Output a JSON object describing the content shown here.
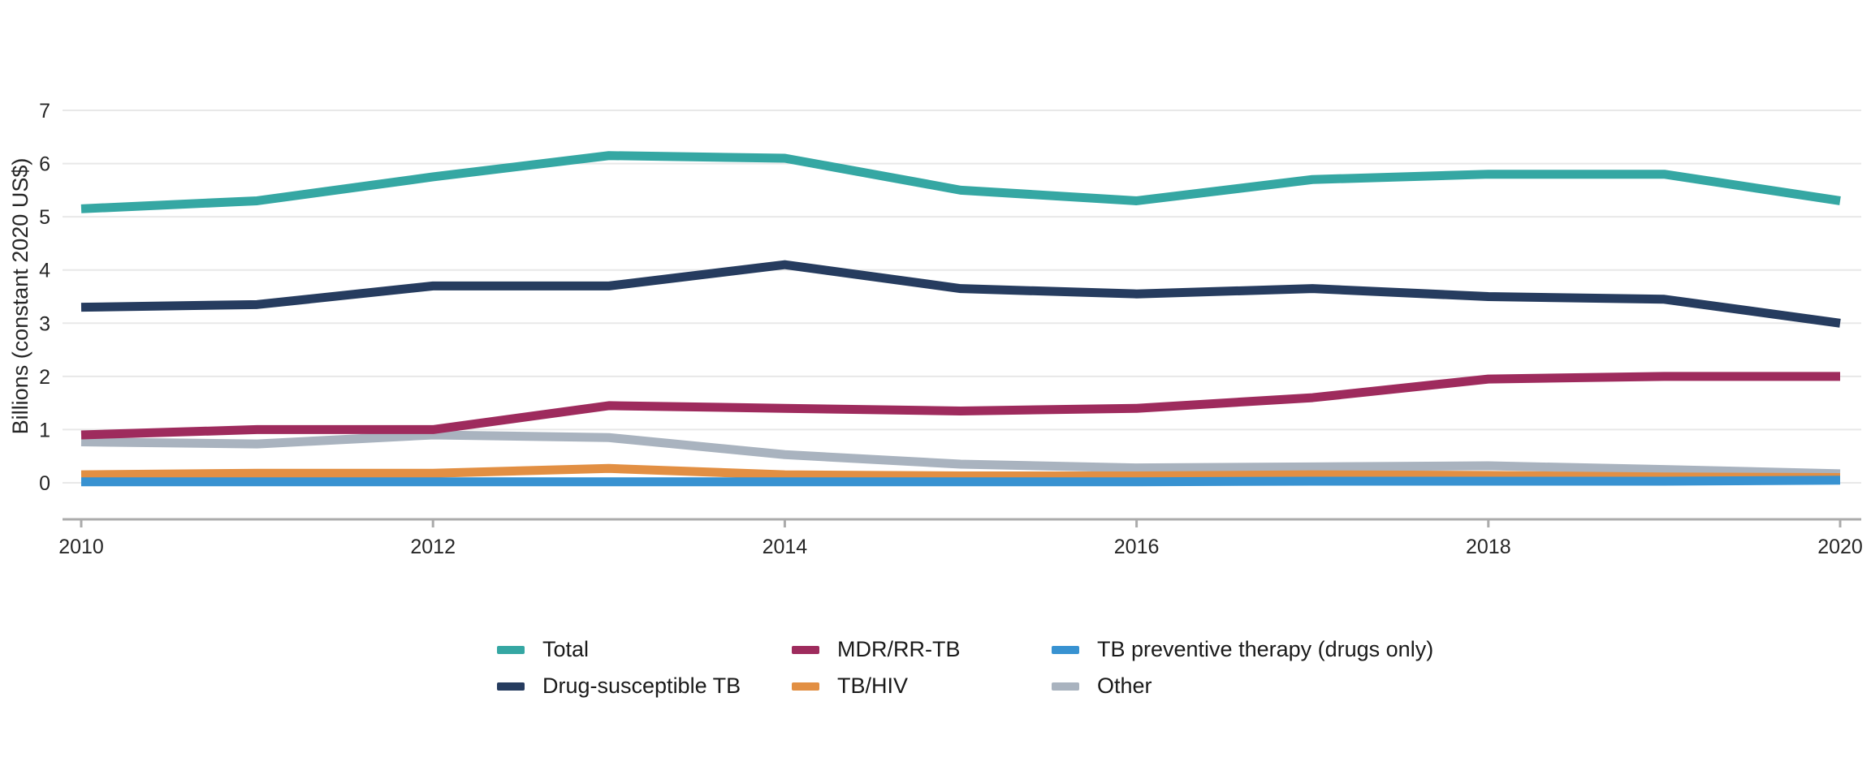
{
  "chart_data": {
    "type": "line",
    "title": "",
    "ylabel": "Billions (constant 2020 US$)",
    "xlabel": "",
    "x": [
      2010,
      2011,
      2012,
      2013,
      2014,
      2015,
      2016,
      2017,
      2018,
      2019,
      2020
    ],
    "xticks": [
      2010,
      2012,
      2014,
      2016,
      2018,
      2020
    ],
    "yticks": [
      0,
      1,
      2,
      3,
      4,
      5,
      6,
      7
    ],
    "ylim": [
      0,
      7
    ],
    "grid": "horizontal-only",
    "legend_position": "bottom",
    "series": [
      {
        "name": "Total",
        "color": "#35a7a3",
        "values": [
          5.15,
          5.3,
          5.75,
          6.15,
          6.1,
          5.5,
          5.3,
          5.7,
          5.8,
          5.8,
          5.3
        ]
      },
      {
        "name": "Drug-susceptible TB",
        "color": "#263c5f",
        "values": [
          3.3,
          3.35,
          3.7,
          3.7,
          4.1,
          3.65,
          3.55,
          3.65,
          3.5,
          3.45,
          3.0
        ]
      },
      {
        "name": "MDR/RR-TB",
        "color": "#9e2b5d",
        "values": [
          0.9,
          1.0,
          1.0,
          1.45,
          1.4,
          1.35,
          1.4,
          1.6,
          1.95,
          2.0,
          2.0
        ]
      },
      {
        "name": "TB/HIV",
        "color": "#e28f43",
        "values": [
          0.15,
          0.18,
          0.18,
          0.27,
          0.15,
          0.13,
          0.13,
          0.15,
          0.14,
          0.11,
          0.1
        ]
      },
      {
        "name": "TB preventive therapy (drugs only)",
        "color": "#3892d1",
        "values": [
          0.02,
          0.02,
          0.02,
          0.02,
          0.02,
          0.02,
          0.02,
          0.03,
          0.03,
          0.03,
          0.05
        ]
      },
      {
        "name": "Other",
        "color": "#a9b3bf",
        "values": [
          0.77,
          0.73,
          0.9,
          0.85,
          0.53,
          0.35,
          0.28,
          0.3,
          0.32,
          0.25,
          0.17
        ]
      }
    ]
  },
  "colors": {
    "background": "#ffffff",
    "gridline": "#e8e8e8",
    "axis": "#ababab",
    "text": "#262626"
  }
}
